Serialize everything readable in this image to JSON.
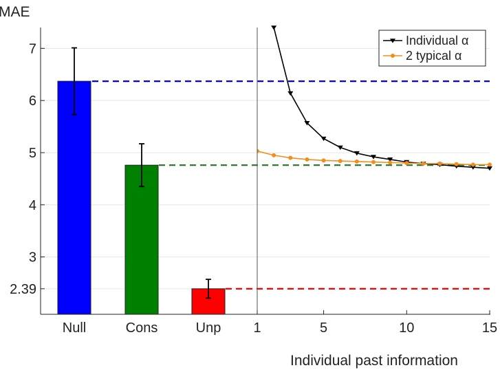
{
  "chart_data": {
    "type": "bar+line",
    "ylabel": "MAE",
    "xlabel": "Individual past information",
    "ylim": [
      1.9,
      7.4
    ],
    "yticks": [
      "7",
      "6",
      "5",
      "4",
      "3",
      "2.39"
    ],
    "grid": "horizontal",
    "legend_position": "top-right",
    "bars": {
      "categories": [
        "Null",
        "Cons",
        "Unp"
      ],
      "values": [
        6.37,
        4.76,
        2.39
      ],
      "errors": [
        0.64,
        0.41,
        0.18
      ],
      "colors": [
        "#0000ff",
        "#008000",
        "#ff0000"
      ]
    },
    "reference_lines": [
      {
        "value": 6.37,
        "color": "#0000ff"
      },
      {
        "value": 4.76,
        "color": "#2e7d32"
      },
      {
        "value": 2.39,
        "color": "#ff0000"
      }
    ],
    "line_panel": {
      "xlim": [
        1,
        15
      ],
      "xticks": [
        "1",
        "5",
        "10",
        "15"
      ],
      "series": [
        {
          "name": "Individual α",
          "color": "#000000",
          "marker": "triangle-down",
          "x": [
            2,
            3,
            4,
            5,
            6,
            7,
            8,
            9,
            10,
            11,
            12,
            13,
            14,
            15
          ],
          "y": [
            7.4,
            6.14,
            5.57,
            5.27,
            5.1,
            4.99,
            4.92,
            4.87,
            4.82,
            4.79,
            4.77,
            4.74,
            4.72,
            4.7
          ]
        },
        {
          "name": "2 typical α",
          "color": "#f28e1c",
          "marker": "circle",
          "x": [
            1,
            2,
            3,
            4,
            5,
            6,
            7,
            8,
            9,
            10,
            11,
            12,
            13,
            14,
            15
          ],
          "y": [
            5.03,
            4.95,
            4.9,
            4.87,
            4.85,
            4.84,
            4.83,
            4.82,
            4.81,
            4.8,
            4.79,
            4.79,
            4.78,
            4.77,
            4.77
          ]
        }
      ]
    }
  }
}
